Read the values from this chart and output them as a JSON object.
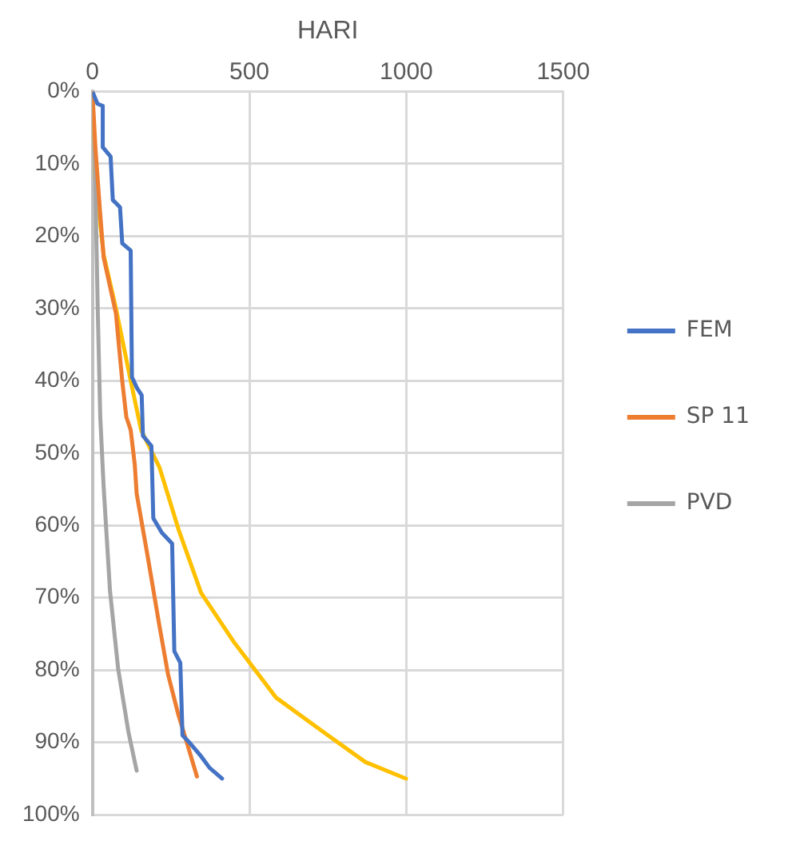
{
  "chart_data": {
    "type": "line",
    "xlabel": "HARI",
    "xlim": [
      0,
      1500
    ],
    "xticks": [
      0,
      500,
      1000,
      1500
    ],
    "ylim": [
      100,
      0
    ],
    "yticks": [
      {
        "value": 0,
        "label": "0%"
      },
      {
        "value": 10,
        "label": "10%"
      },
      {
        "value": 20,
        "label": "20%"
      },
      {
        "value": 30,
        "label": "30%"
      },
      {
        "value": 40,
        "label": "40%"
      },
      {
        "value": 50,
        "label": "50%"
      },
      {
        "value": 60,
        "label": "60%"
      },
      {
        "value": 70,
        "label": "70%"
      },
      {
        "value": 80,
        "label": "80%"
      },
      {
        "value": 90,
        "label": "90%"
      },
      {
        "value": 100,
        "label": "100%"
      }
    ],
    "grid": true,
    "legend": "right",
    "marker": "none",
    "line_style": "solid",
    "series": [
      {
        "name": "FEM",
        "color": "#4472c4",
        "x": [
          0,
          16,
          33,
          33,
          58,
          65,
          88,
          95,
          122,
          126,
          142,
          157,
          161,
          188,
          194,
          221,
          254,
          261,
          280,
          287,
          313,
          346,
          373,
          413
        ],
        "values": [
          0,
          1.7,
          2,
          7.7,
          9,
          15,
          16,
          21,
          22,
          39.5,
          41,
          42,
          47.6,
          49,
          59,
          61,
          62.5,
          77.4,
          79,
          89,
          90.2,
          91.9,
          93.5,
          95
        ]
      },
      {
        "name": "SP 11",
        "color": "#ed7d31",
        "x": [
          0,
          10,
          25,
          36,
          75,
          95,
          108,
          122,
          135,
          141,
          175,
          214,
          241,
          274,
          300,
          333
        ],
        "values": [
          0,
          8,
          17,
          23,
          30.7,
          40,
          45,
          46.8,
          51.6,
          55.6,
          64,
          74,
          80.6,
          86.2,
          89.9,
          94.7
        ]
      },
      {
        "name": "PVD",
        "color": "#a5a5a5",
        "x": [
          0,
          8,
          17,
          25,
          36,
          56,
          82,
          115,
          141
        ],
        "values": [
          0,
          10,
          30,
          45,
          54.8,
          69,
          79.8,
          88.6,
          93.9
        ]
      },
      {
        "color": "#ffc000",
        "x": [
          0,
          9,
          36,
          75,
          122,
          155,
          214,
          274,
          346,
          452,
          585,
          737,
          869,
          999
        ],
        "values": [
          0,
          12,
          22.6,
          30,
          40,
          46.8,
          52,
          60.5,
          69.3,
          76.2,
          83.8,
          88.6,
          92.7,
          95
        ]
      }
    ]
  }
}
